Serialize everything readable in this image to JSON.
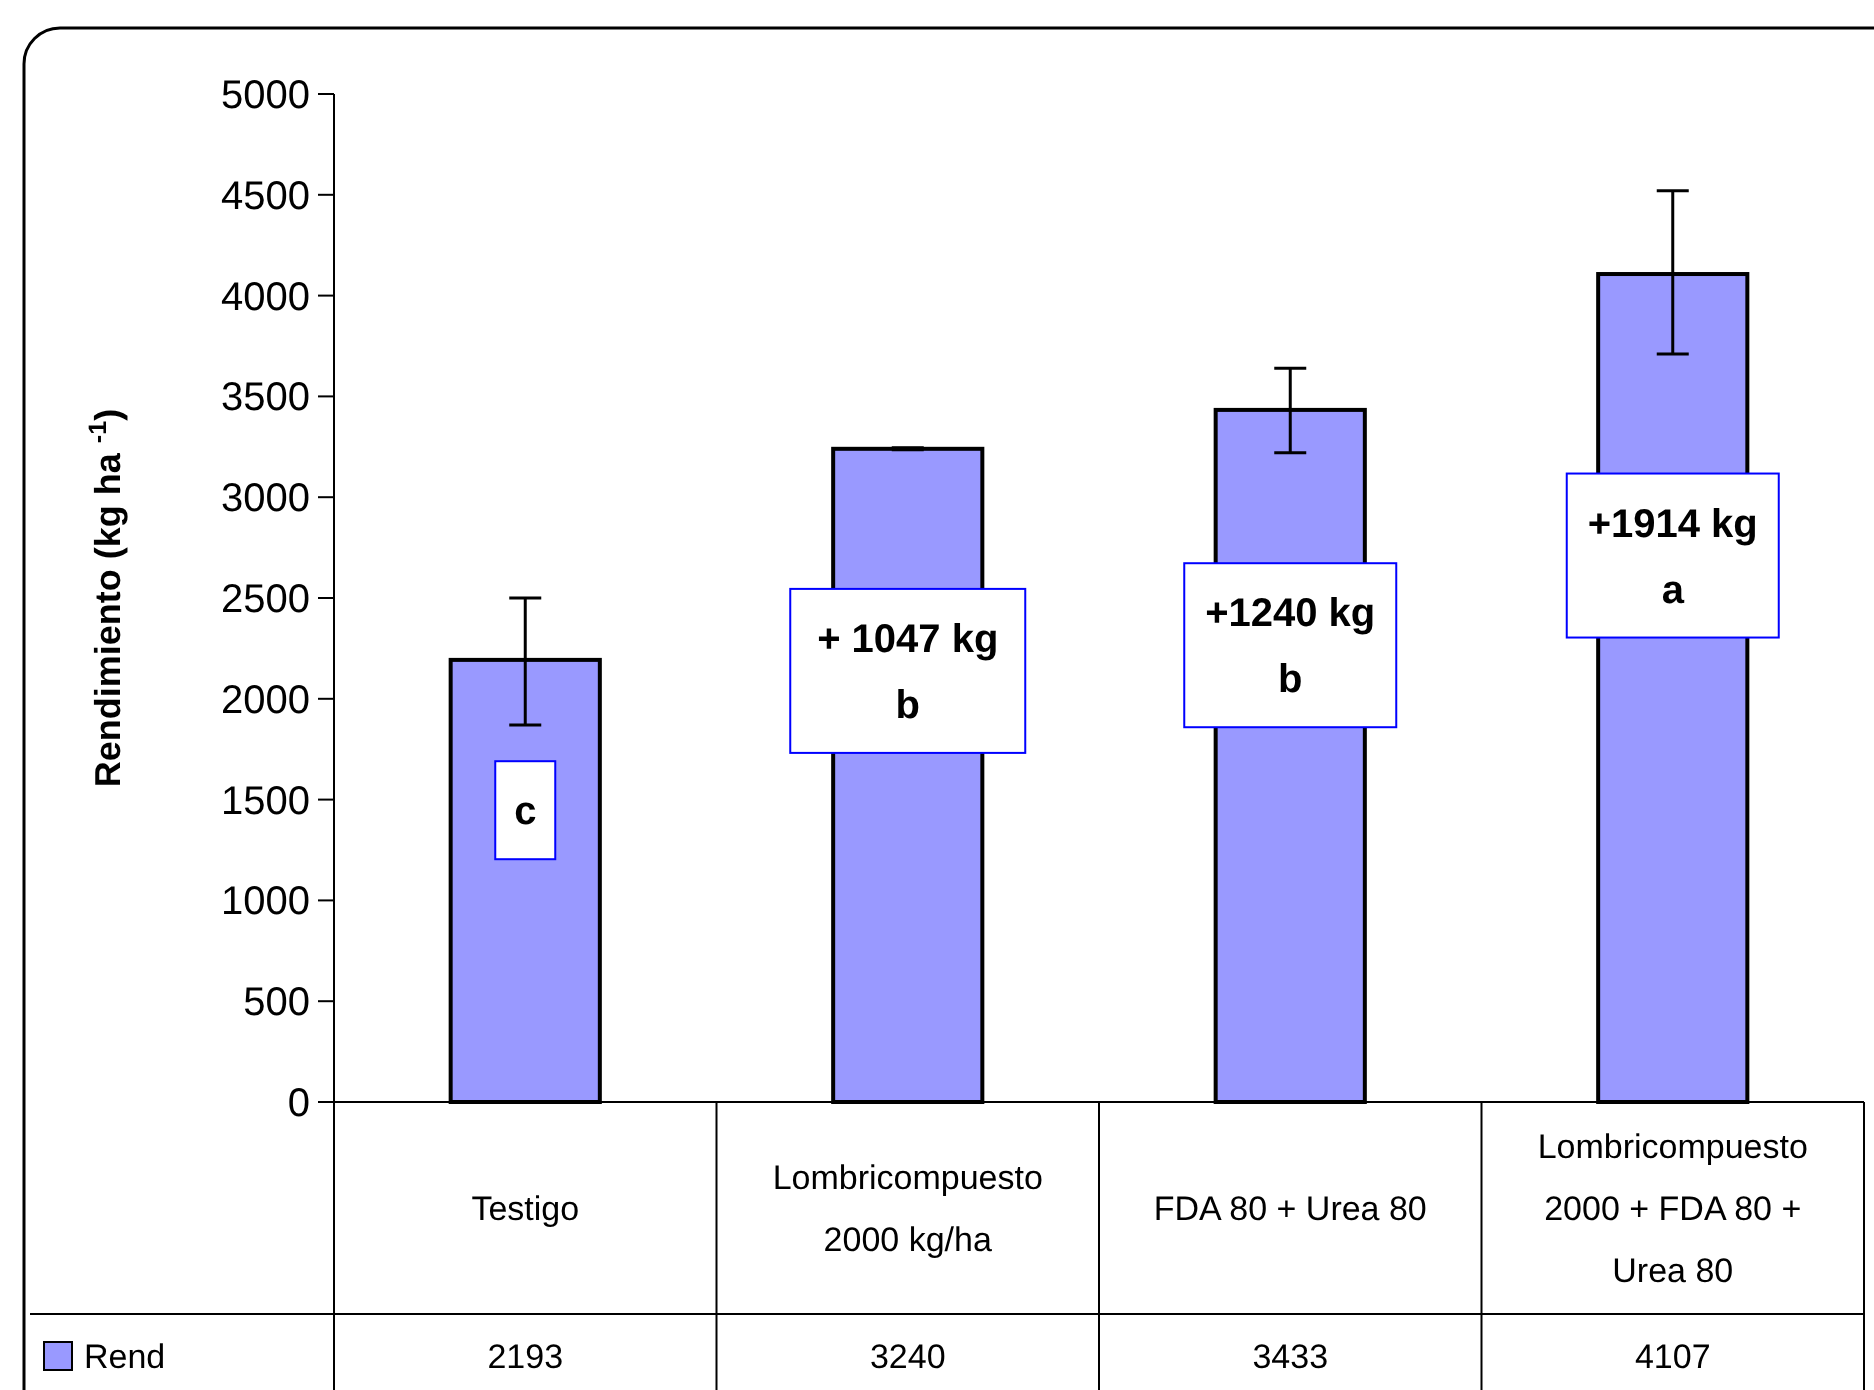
{
  "chart_data": {
    "type": "bar",
    "ylabel": "Rendimiento (kg ha $^{-1}$)",
    "categories": [
      "Testigo",
      "Lombricompuesto\n2000 kg/ha",
      "FDA 80 + Urea 80",
      "Lombricompuesto\n2000 + FDA 80 +\nUrea 80"
    ],
    "series": [
      {
        "name": "Rend",
        "color": "#9999ff",
        "values": [
          2193,
          3240,
          3433,
          4107
        ],
        "errors": [
          [
            1870,
            2500
          ],
          [
            3235,
            3245
          ],
          [
            3220,
            3640
          ],
          [
            3710,
            4520
          ]
        ]
      }
    ],
    "ylim": [
      0,
      5000
    ],
    "yticks": [
      0,
      500,
      1000,
      1500,
      2000,
      2500,
      3000,
      3500,
      4000,
      4500,
      5000
    ],
    "grid": false,
    "legend": "bottom left",
    "data_labels": true,
    "annotations": [
      "c",
      "+ 1047 kg\nb",
      "+1240 kg\nb",
      "+1914 kg\na"
    ]
  }
}
